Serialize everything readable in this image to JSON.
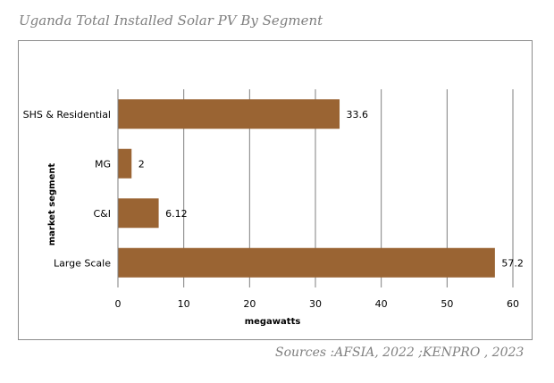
{
  "title": "Uganda Total Installed Solar PV By Segment",
  "source": "Sources :AFSIA, 2022 ;KENPRO , 2023",
  "colors": {
    "bar": "#9a6433",
    "grid": "#7f7f7f",
    "axis": "#7f7f7f"
  },
  "chart_data": {
    "type": "bar",
    "orientation": "horizontal",
    "title": "Uganda Total Installed Solar PV By Segment",
    "categories": [
      "SHS & Residential",
      "MG",
      "C&I",
      "Large Scale"
    ],
    "values": [
      33.6,
      2,
      6.12,
      57.2
    ],
    "value_labels": [
      "33.6",
      "2",
      "6.12",
      "57.2"
    ],
    "xlabel": "megawatts",
    "ylabel": "market segment",
    "xlim": [
      0,
      60
    ],
    "xticks": [
      "0",
      "10",
      "20",
      "30",
      "40",
      "50",
      "60"
    ],
    "grid": true,
    "legend": "none"
  }
}
